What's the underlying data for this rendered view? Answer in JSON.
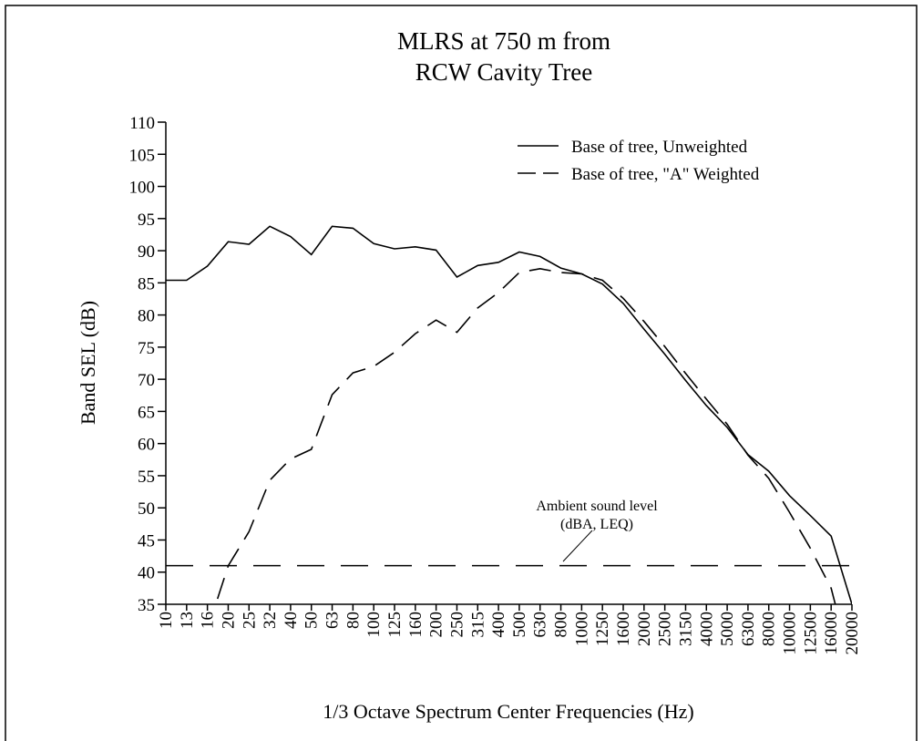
{
  "chart_data": {
    "type": "line",
    "title": [
      "MLRS at 750 m from",
      "RCW Cavity Tree"
    ],
    "y_label": "Band SEL (dB)",
    "x_label": "1/3 Octave Spectrum Center Frequencies (Hz)",
    "categories": [
      "10",
      "13",
      "16",
      "20",
      "25",
      "32",
      "40",
      "50",
      "63",
      "80",
      "100",
      "125",
      "160",
      "200",
      "250",
      "315",
      "400",
      "500",
      "630",
      "800",
      "1000",
      "1250",
      "1600",
      "2000",
      "2500",
      "3150",
      "4000",
      "5000",
      "6300",
      "8000",
      "10000",
      "12500",
      "16000",
      "20000"
    ],
    "series": [
      {
        "name": "Base of tree, Unweighted",
        "color": "#000000",
        "dash": "solid",
        "values": [
          85.4,
          85.4,
          87.6,
          91.4,
          91.0,
          93.8,
          92.2,
          89.4,
          93.8,
          93.5,
          91.1,
          90.3,
          90.6,
          90.1,
          85.9,
          87.7,
          88.2,
          89.8,
          89.1,
          87.3,
          86.4,
          84.8,
          81.8,
          77.8,
          73.9,
          69.8,
          65.9,
          62.5,
          58.3,
          55.7,
          51.9,
          48.8,
          45.6,
          35.0
        ]
      },
      {
        "name": "Base of tree, \"A\" Weighted",
        "color": "#000000",
        "dash": "dashed",
        "values": [
          null,
          null,
          31.0,
          41.0,
          46.3,
          54.3,
          57.6,
          59.1,
          67.6,
          71.0,
          72.0,
          74.2,
          77.1,
          79.2,
          77.3,
          81.1,
          83.5,
          86.6,
          87.2,
          86.6,
          86.4,
          85.4,
          82.6,
          79.0,
          75.1,
          70.9,
          66.9,
          63.0,
          58.2,
          54.6,
          49.3,
          43.7,
          37.5,
          25.0
        ]
      }
    ],
    "reference_line": {
      "value": 41,
      "label": [
        "Ambient sound level",
        "(dBA, LEQ)"
      ],
      "dash": "dashed"
    },
    "ylim": [
      35,
      110
    ],
    "yticks": [
      35,
      40,
      45,
      50,
      55,
      60,
      65,
      70,
      75,
      80,
      85,
      90,
      95,
      100,
      105,
      110
    ],
    "grid": false,
    "legend": "upper right"
  }
}
